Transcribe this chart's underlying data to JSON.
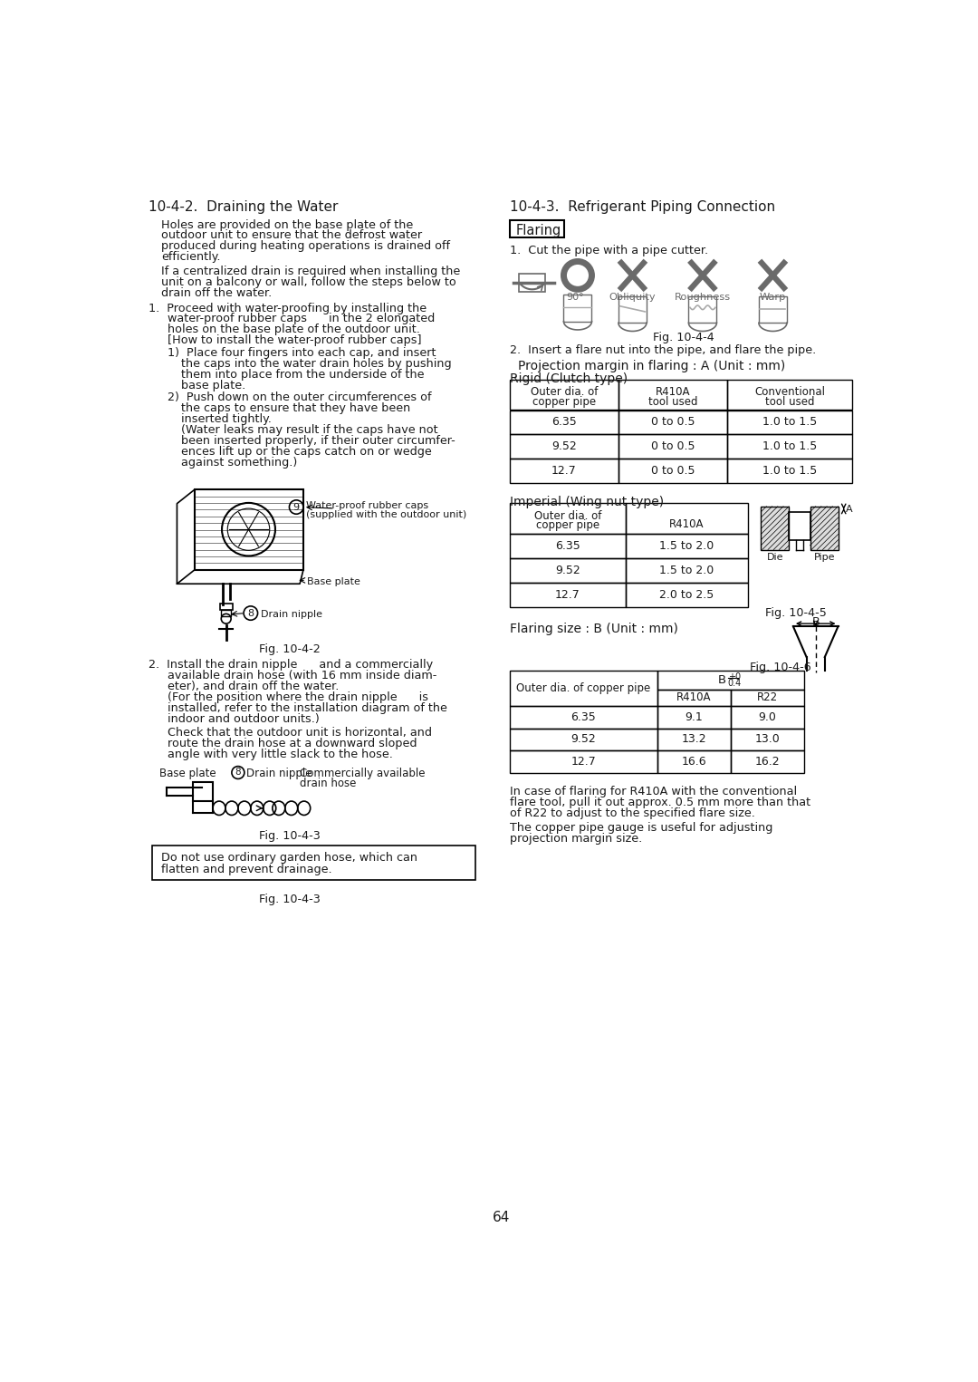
{
  "bg_color": "#ffffff",
  "text_color": "#1a1a1a",
  "page_number": "64",
  "left_section_title": "10-4-2.  Draining the Water",
  "right_section_title": "10-4-3.  Refrigerant Piping Connection",
  "flaring_label": "Flaring",
  "right_step1": "1.  Cut the pipe with a pipe cutter.",
  "fig_label_4": "Fig. 10-4-4",
  "right_step2": "2.  Insert a flare nut into the pipe, and flare the pipe.",
  "proj_margin_title": "  Projection margin in flaring : A (Unit : mm)",
  "rigid_title": "Rigid (Clutch type)",
  "rigid_headers": [
    "Outer dia. of\ncopper pipe",
    "R410A\ntool used",
    "Conventional\ntool used"
  ],
  "rigid_rows": [
    [
      "6.35",
      "0 to 0.5",
      "1.0 to 1.5"
    ],
    [
      "9.52",
      "0 to 0.5",
      "1.0 to 1.5"
    ],
    [
      "12.7",
      "0 to 0.5",
      "1.0 to 1.5"
    ]
  ],
  "imperial_title": "Imperial (Wing nut type)",
  "imperial_headers": [
    "Outer dia. of\ncopper pipe",
    "R410A"
  ],
  "imperial_rows": [
    [
      "6.35",
      "1.5 to 2.0"
    ],
    [
      "9.52",
      "1.5 to 2.0"
    ],
    [
      "12.7",
      "2.0 to 2.5"
    ]
  ],
  "fig_label_5": "Fig. 10-4-5",
  "flaring_size_title": "Flaring size : B (Unit : mm)",
  "fig_label_6": "Fig. 10-4-6",
  "flaring_size_rows": [
    [
      "6.35",
      "9.1",
      "9.0"
    ],
    [
      "9.52",
      "13.2",
      "13.0"
    ],
    [
      "12.7",
      "16.6",
      "16.2"
    ]
  ],
  "bottom_note1": "In case of flaring for R410A with the conventional\nflare tool, pull it out approx. 0.5 mm more than that\nof R22 to adjust to the specified flare size.",
  "bottom_note2": "The copper pipe gauge is useful for adjusting\nprojection margin size.",
  "fig_label_1": "Fig. 10-4-2",
  "fig_label_2": "Fig. 10-4-3",
  "left_warning": "Do not use ordinary garden hose, which can\nflatten and prevent drainage."
}
